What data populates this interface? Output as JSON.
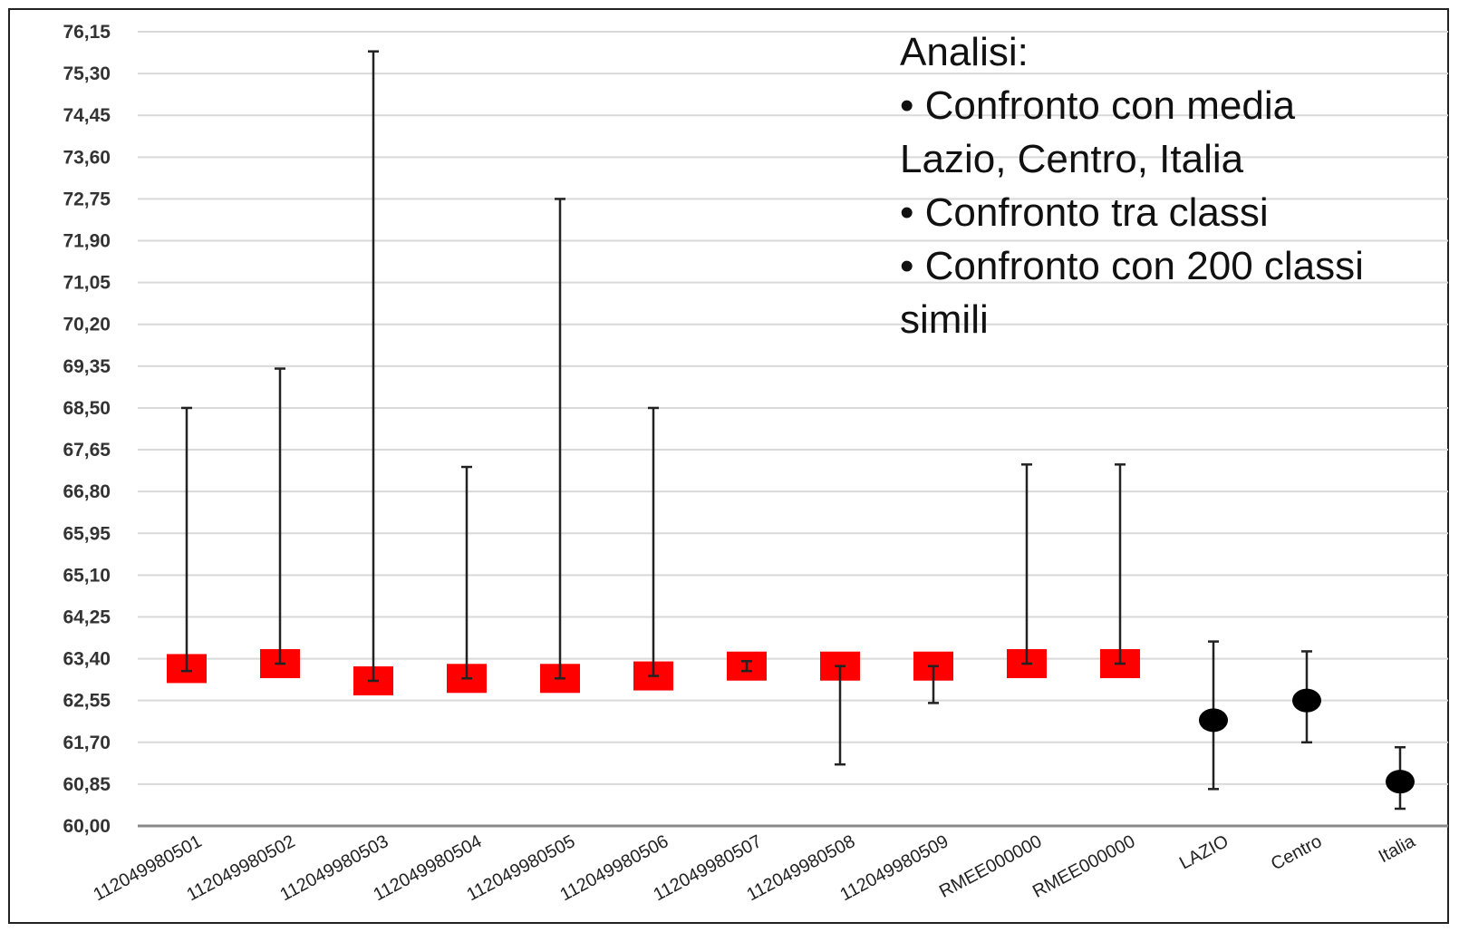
{
  "chart_data": {
    "type": "scatter",
    "title": "",
    "xlabel": "",
    "ylabel": "",
    "ylim": [
      60.0,
      76.15
    ],
    "y_ticks": [
      "60,00",
      "60,85",
      "61,70",
      "62,55",
      "63,40",
      "64,25",
      "65,10",
      "65,95",
      "66,80",
      "67,65",
      "68,50",
      "69,35",
      "70,20",
      "71,05",
      "71,90",
      "72,75",
      "73,60",
      "74,45",
      "75,30",
      "76,15"
    ],
    "y_tick_values": [
      60.0,
      60.85,
      61.7,
      62.55,
      63.4,
      64.25,
      65.1,
      65.95,
      66.8,
      67.65,
      68.5,
      69.35,
      70.2,
      71.05,
      71.9,
      72.75,
      73.6,
      74.45,
      75.3,
      76.15
    ],
    "grid": true,
    "categories": [
      "112049980501",
      "112049980502",
      "112049980503",
      "112049980504",
      "112049980505",
      "112049980506",
      "112049980507",
      "112049980508",
      "112049980509",
      "RMEE000000",
      "RMEE000000",
      "LAZIO",
      "Centro",
      "Italia"
    ],
    "points": [
      {
        "value": 63.2,
        "low": 63.15,
        "high": 68.5,
        "marker": "square",
        "color": "#ff0000"
      },
      {
        "value": 63.3,
        "low": 63.3,
        "high": 69.3,
        "marker": "square",
        "color": "#ff0000"
      },
      {
        "value": 62.95,
        "low": 62.95,
        "high": 75.75,
        "marker": "square",
        "color": "#ff0000"
      },
      {
        "value": 63.0,
        "low": 63.0,
        "high": 67.3,
        "marker": "square",
        "color": "#ff0000"
      },
      {
        "value": 63.0,
        "low": 63.0,
        "high": 72.75,
        "marker": "square",
        "color": "#ff0000"
      },
      {
        "value": 63.05,
        "low": 63.05,
        "high": 68.5,
        "marker": "square",
        "color": "#ff0000"
      },
      {
        "value": 63.25,
        "low": 63.15,
        "high": 63.35,
        "marker": "square",
        "color": "#ff0000"
      },
      {
        "value": 63.25,
        "low": 61.25,
        "high": 63.25,
        "marker": "square",
        "color": "#ff0000"
      },
      {
        "value": 63.25,
        "low": 62.5,
        "high": 63.25,
        "marker": "square",
        "color": "#ff0000"
      },
      {
        "value": 63.3,
        "low": 63.3,
        "high": 67.35,
        "marker": "square",
        "color": "#ff0000"
      },
      {
        "value": 63.3,
        "low": 63.3,
        "high": 67.35,
        "marker": "square",
        "color": "#ff0000"
      },
      {
        "value": 62.15,
        "low": 60.75,
        "high": 63.75,
        "marker": "circle",
        "color": "#000000"
      },
      {
        "value": 62.55,
        "low": 61.7,
        "high": 63.55,
        "marker": "circle",
        "color": "#000000"
      },
      {
        "value": 60.9,
        "low": 60.35,
        "high": 61.6,
        "marker": "circle",
        "color": "#000000"
      }
    ],
    "colors": {
      "grid": "#d9d9d9",
      "axis": "#888888",
      "errorbar": "#222222"
    }
  },
  "annotation": {
    "lines": [
      "Analisi:",
      "• Confronto con media",
      "Lazio, Centro, Italia",
      "• Confronto tra classi",
      "• Confronto con 200 classi",
      "simili"
    ]
  }
}
